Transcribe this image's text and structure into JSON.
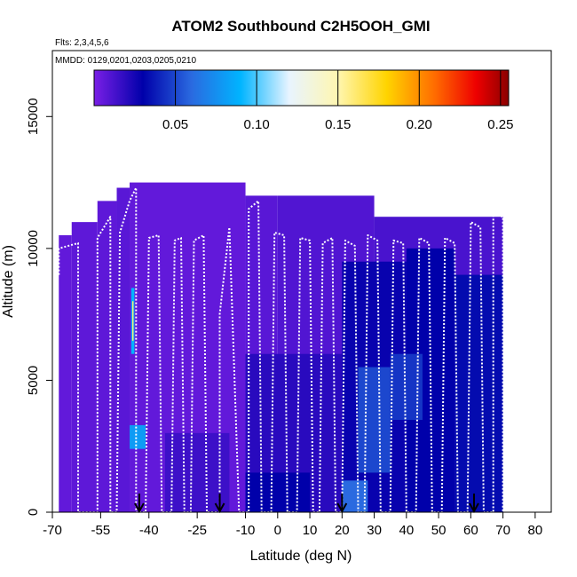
{
  "chart_data": {
    "type": "heatmap",
    "title": "ATOM2 Southbound C2H5OOH_GMI",
    "subtitle_flights": "Flts: 2,3,4,5,6",
    "subtitle_dates": "MMDD: 0129,0201,0203,0205,0210",
    "xlabel": "Latitude (deg N)",
    "ylabel": "Altitude (m)",
    "xlim": [
      -70,
      85
    ],
    "ylim": [
      0,
      17500
    ],
    "x_ticks": [
      -70,
      -55,
      -40,
      -25,
      -10,
      0,
      10,
      20,
      30,
      40,
      50,
      60,
      70,
      80
    ],
    "y_ticks": [
      0,
      5000,
      10000,
      15000
    ],
    "colorbar": {
      "min": 0.0,
      "max": 0.255,
      "tick_values": [
        0.05,
        0.1,
        0.15,
        0.2,
        0.25
      ],
      "tick_labels": [
        "0.05",
        "0.10",
        "0.15",
        "0.20",
        "0.25"
      ],
      "color_stops": [
        {
          "value": 0.0,
          "color": "#7a1fe6"
        },
        {
          "value": 0.03,
          "color": "#0000aa"
        },
        {
          "value": 0.06,
          "color": "#2a6ae0"
        },
        {
          "value": 0.09,
          "color": "#00b4ff"
        },
        {
          "value": 0.12,
          "color": "#e8f4ff"
        },
        {
          "value": 0.15,
          "color": "#fff6b0"
        },
        {
          "value": 0.18,
          "color": "#ffd400"
        },
        {
          "value": 0.21,
          "color": "#ff6a00"
        },
        {
          "value": 0.235,
          "color": "#ee0000"
        },
        {
          "value": 0.255,
          "color": "#8b0000"
        }
      ]
    },
    "background_cells": [
      {
        "lat": [
          -68,
          -64
        ],
        "alt": [
          0,
          10500
        ],
        "value": 0.006
      },
      {
        "lat": [
          -64,
          -56
        ],
        "alt": [
          0,
          11000
        ],
        "value": 0.007
      },
      {
        "lat": [
          -56,
          -50
        ],
        "alt": [
          0,
          11800
        ],
        "value": 0.007
      },
      {
        "lat": [
          -50,
          -46
        ],
        "alt": [
          0,
          12300
        ],
        "value": 0.008
      },
      {
        "lat": [
          -46,
          -10
        ],
        "alt": [
          0,
          12500
        ],
        "value": 0.006
      },
      {
        "lat": [
          -10,
          0
        ],
        "alt": [
          0,
          12000
        ],
        "value": 0.008
      },
      {
        "lat": [
          0,
          30
        ],
        "alt": [
          0,
          12000
        ],
        "value": 0.01
      },
      {
        "lat": [
          30,
          70
        ],
        "alt": [
          0,
          11200
        ],
        "value": 0.012
      },
      {
        "lat": [
          -35,
          -15
        ],
        "alt": [
          0,
          3000
        ],
        "value": 0.015
      },
      {
        "lat": [
          -10,
          20
        ],
        "alt": [
          0,
          6000
        ],
        "value": 0.02
      },
      {
        "lat": [
          20,
          40
        ],
        "alt": [
          0,
          9500
        ],
        "value": 0.028
      },
      {
        "lat": [
          40,
          55
        ],
        "alt": [
          0,
          10000
        ],
        "value": 0.03
      },
      {
        "lat": [
          55,
          70
        ],
        "alt": [
          0,
          9000
        ],
        "value": 0.033
      },
      {
        "lat": [
          -10,
          10
        ],
        "alt": [
          0,
          1500
        ],
        "value": 0.03
      },
      {
        "lat": [
          25,
          35
        ],
        "alt": [
          1500,
          5500
        ],
        "value": 0.05
      },
      {
        "lat": [
          35,
          45
        ],
        "alt": [
          3500,
          6000
        ],
        "value": 0.045
      },
      {
        "lat": [
          20,
          28
        ],
        "alt": [
          0,
          1200
        ],
        "value": 0.06
      },
      {
        "lat": [
          -45.5,
          -44.5
        ],
        "alt": [
          6000,
          8500
        ],
        "value": 0.09
      },
      {
        "lat": [
          -45.2,
          -44.8
        ],
        "alt": [
          6500,
          8000
        ],
        "value": 0.16
      },
      {
        "lat": [
          -46,
          -41
        ],
        "alt": [
          2400,
          3300
        ],
        "value": 0.08
      }
    ],
    "flight_track_points": [
      [
        -68,
        9000
      ],
      [
        -68,
        10000
      ],
      [
        -62,
        10200
      ],
      [
        -62,
        0
      ],
      [
        -56,
        0
      ],
      [
        -56,
        10400
      ],
      [
        -52,
        11200
      ],
      [
        -52,
        0
      ],
      [
        -50,
        0
      ],
      [
        -49,
        10600
      ],
      [
        -46,
        11800
      ],
      [
        -44,
        12300
      ],
      [
        -44,
        0
      ],
      [
        -41,
        0
      ],
      [
        -40,
        10400
      ],
      [
        -37,
        10500
      ],
      [
        -36,
        0
      ],
      [
        -33,
        0
      ],
      [
        -32,
        10300
      ],
      [
        -30,
        10400
      ],
      [
        -29,
        0
      ],
      [
        -27,
        0
      ],
      [
        -26,
        10300
      ],
      [
        -23,
        10500
      ],
      [
        -22,
        0
      ],
      [
        -18,
        0
      ],
      [
        -18,
        7500
      ],
      [
        -15,
        10800
      ],
      [
        -12,
        0
      ],
      [
        -9,
        0
      ],
      [
        -9,
        11500
      ],
      [
        -6,
        11800
      ],
      [
        -5,
        0
      ],
      [
        -2,
        0
      ],
      [
        -1,
        10600
      ],
      [
        2,
        10500
      ],
      [
        3,
        0
      ],
      [
        6,
        0
      ],
      [
        7,
        10400
      ],
      [
        10,
        10300
      ],
      [
        11,
        0
      ],
      [
        13,
        0
      ],
      [
        14,
        10200
      ],
      [
        17,
        10400
      ],
      [
        18,
        0
      ],
      [
        20,
        0
      ],
      [
        21,
        10300
      ],
      [
        24,
        10100
      ],
      [
        25,
        0
      ],
      [
        27,
        0
      ],
      [
        28,
        10500
      ],
      [
        31,
        10300
      ],
      [
        32,
        0
      ],
      [
        35,
        0
      ],
      [
        36,
        10300
      ],
      [
        39,
        10200
      ],
      [
        40,
        0
      ],
      [
        43,
        0
      ],
      [
        44,
        10400
      ],
      [
        47,
        10200
      ],
      [
        48,
        0
      ],
      [
        51,
        0
      ],
      [
        52,
        10400
      ],
      [
        55,
        10200
      ],
      [
        56,
        0
      ],
      [
        59,
        0
      ],
      [
        60,
        11000
      ],
      [
        63,
        10800
      ],
      [
        64,
        0
      ],
      [
        67,
        0
      ],
      [
        67,
        11300
      ],
      [
        70,
        11200
      ],
      [
        70,
        0
      ]
    ],
    "arrows_lat": [
      -43,
      -18,
      20,
      61
    ]
  }
}
